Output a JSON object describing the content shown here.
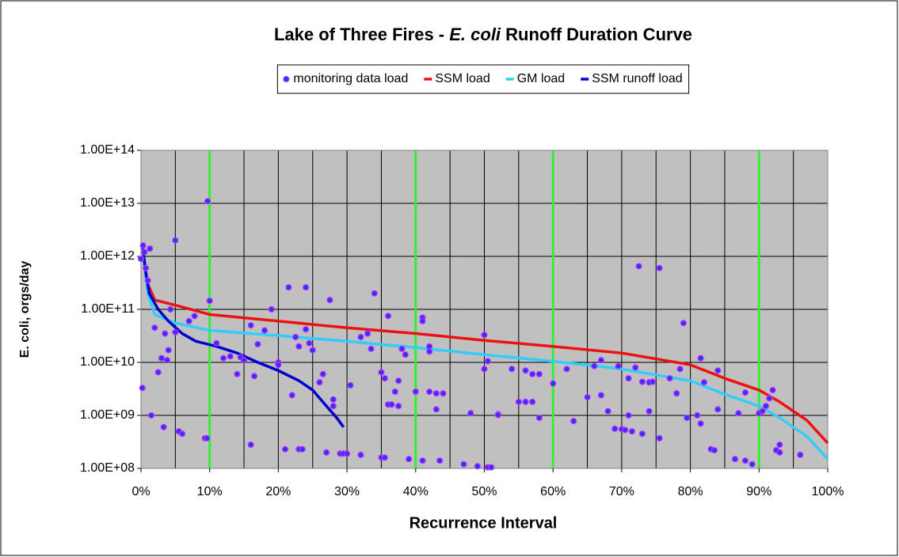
{
  "chart_data": {
    "type": "scatter",
    "title_parts": [
      "Lake of Three Fires - ",
      "E. coli",
      " Runoff Duration Curve"
    ],
    "xlabel": "Recurrence Interval",
    "ylabel": "E. coli, orgs/day",
    "log_y": true,
    "xlim": [
      0,
      100
    ],
    "ylim": [
      100000000.0,
      100000000000000.0
    ],
    "xticks": [
      {
        "value": 0,
        "label": "0%"
      },
      {
        "value": 10,
        "label": "10%"
      },
      {
        "value": 20,
        "label": "20%"
      },
      {
        "value": 30,
        "label": "30%"
      },
      {
        "value": 40,
        "label": "40%"
      },
      {
        "value": 50,
        "label": "50%"
      },
      {
        "value": 60,
        "label": "60%"
      },
      {
        "value": 70,
        "label": "70%"
      },
      {
        "value": 80,
        "label": "80%"
      },
      {
        "value": 90,
        "label": "90%"
      },
      {
        "value": 100,
        "label": "100%"
      }
    ],
    "yticks": [
      {
        "value": 100000000.0,
        "label": "1.00E+08"
      },
      {
        "value": 1000000000.0,
        "label": "1.00E+09"
      },
      {
        "value": 10000000000.0,
        "label": "1.00E+10"
      },
      {
        "value": 100000000000.0,
        "label": "1.00E+11"
      },
      {
        "value": 1000000000000.0,
        "label": "1.00E+12"
      },
      {
        "value": 10000000000000.0,
        "label": "1.00E+13"
      },
      {
        "value": 100000000000000.0,
        "label": "1.00E+14"
      }
    ],
    "x_gridlines": [
      0,
      5,
      10,
      15,
      20,
      25,
      30,
      35,
      40,
      45,
      50,
      55,
      60,
      65,
      70,
      75,
      80,
      85,
      90,
      95,
      100
    ],
    "zone_lines": [
      10,
      40,
      60,
      90
    ],
    "zone_color": "#33ee33",
    "grid": true,
    "legend": "top",
    "series": [
      {
        "name": "monitoring data load",
        "style": "markers",
        "color": "#3333ff",
        "edge_color": "#cc33ff",
        "x": [
          0,
          0.2,
          0.3,
          0.5,
          0.7,
          1,
          1.3,
          1.5,
          2,
          2.5,
          3,
          3.3,
          3.5,
          3.8,
          4,
          4.3,
          5,
          5,
          5.5,
          6,
          7,
          7.8,
          9.3,
          9.6,
          9.7,
          10,
          11,
          12,
          13,
          14,
          14.5,
          15,
          16,
          16,
          16.5,
          17,
          18,
          19,
          20,
          20,
          21,
          21.5,
          22,
          22.5,
          23,
          23,
          23.5,
          24,
          24,
          24.5,
          25,
          26,
          26.5,
          27,
          27.5,
          28,
          28,
          29,
          29.5,
          30,
          30.5,
          32,
          32,
          33,
          33.5,
          34,
          35,
          35,
          35.5,
          35.5,
          36,
          36,
          36.5,
          37,
          37.5,
          37.5,
          38,
          38.5,
          39,
          40,
          41,
          41,
          41,
          42,
          42,
          42,
          43,
          43,
          43.5,
          44,
          47,
          48,
          49,
          50,
          50,
          50.5,
          50.5,
          51,
          52,
          52,
          54,
          55,
          56,
          56,
          57,
          57,
          58,
          58,
          60,
          62,
          63,
          65,
          66,
          67,
          67,
          68,
          69,
          69.5,
          70,
          70.5,
          71,
          71,
          71.5,
          72,
          72.5,
          73,
          73,
          74,
          74,
          74.5,
          75.5,
          75.5,
          77,
          78,
          78.5,
          79,
          79.5,
          81,
          81.5,
          81.5,
          82,
          83,
          83.5,
          84,
          84,
          86.5,
          87,
          88,
          88,
          89,
          90,
          90.5,
          91,
          91.5,
          92,
          92.5,
          93,
          93,
          96
        ],
        "values": [
          900000000000.0,
          3300000000.0,
          1600000000000.0,
          1200000000000.0,
          600000000000.0,
          350000000000.0,
          1400000000000.0,
          1000000000.0,
          45000000000.0,
          6500000000.0,
          12000000000.0,
          600000000.0,
          35000000000.0,
          11000000000.0,
          17000000000.0,
          100000000000.0,
          2000000000000.0,
          37000000000.0,
          500000000.0,
          450000000.0,
          60000000000.0,
          75000000000.0,
          370000000.0,
          370000000.0,
          11000000000000.0,
          145000000000.0,
          23000000000.0,
          12000000000.0,
          13000000000.0,
          6000000000.0,
          12500000000.0,
          11000000000.0,
          50000000000.0,
          280000000.0,
          5500000000.0,
          22000000000.0,
          40000000000.0,
          100000000000.0,
          10000000000.0,
          9000000000.0,
          230000000.0,
          260000000000.0,
          2400000000.0,
          30000000000.0,
          20000000000.0,
          230000000.0,
          230000000.0,
          42000000000.0,
          260000000000.0,
          23000000000.0,
          17000000000.0,
          4200000000.0,
          6000000000.0,
          200000000.0,
          150000000000.0,
          1500000000.0,
          2000000000.0,
          190000000.0,
          190000000.0,
          190000000.0,
          3700000000.0,
          30000000000.0,
          180000000.0,
          35000000000.0,
          18000000000.0,
          200000000000.0,
          6500000000.0,
          160000000.0,
          160000000.0,
          5000000000.0,
          1600000000.0,
          75000000000.0,
          1600000000.0,
          2800000000.0,
          4500000000.0,
          1500000000.0,
          18000000000.0,
          14000000000.0,
          150000000.0,
          2800000000.0,
          70000000000.0,
          60000000000.0,
          140000000.0,
          16000000000.0,
          20000000000.0,
          2800000000.0,
          2600000000.0,
          1300000000.0,
          140000000.0,
          2600000000.0,
          120000000.0,
          1100000000.0,
          110000000.0,
          33000000000.0,
          7500000000.0,
          10500000000.0,
          105000000.0,
          105000000.0,
          1050000000.0,
          1020000000.0,
          7500000000.0,
          1800000000.0,
          1800000000.0,
          7000000000.0,
          6000000000.0,
          1800000000.0,
          6000000000.0,
          900000000.0,
          4000000000.0,
          7500000000.0,
          780000000.0,
          2200000000.0,
          8500000000.0,
          11000000000.0,
          2400000000.0,
          1200000000.0,
          560000000.0,
          8500000000.0,
          550000000.0,
          530000000.0,
          5000000000.0,
          1000000000.0,
          500000000.0,
          8000000000.0,
          650000000000.0,
          4300000000.0,
          450000000.0,
          4200000000.0,
          1200000000.0,
          4300000000.0,
          600000000000.0,
          370000000.0,
          5000000000.0,
          2600000000.0,
          7500000000.0,
          55000000000.0,
          900000000.0,
          1000000000.0,
          12000000000.0,
          700000000.0,
          4200000000.0,
          230000000.0,
          220000000.0,
          7000000000.0,
          1300000000.0,
          150000000.0,
          1100000000.0,
          140000000.0,
          2700000000.0,
          120000000.0,
          1100000000.0,
          1200000000.0,
          1500000000.0,
          2100000000.0,
          3000000000.0,
          220000000.0,
          280000000.0,
          200000000.0,
          180000000.0
        ]
      },
      {
        "name": "SSM load",
        "style": "line",
        "color": "#ee1111",
        "x": [
          0.3,
          1,
          2,
          5,
          10,
          20,
          30,
          40,
          50,
          60,
          70,
          80,
          85,
          90,
          93,
          97,
          100
        ],
        "values": [
          1000000000000.0,
          300000000000.0,
          150000000000.0,
          120000000000.0,
          80000000000.0,
          60000000000.0,
          45000000000.0,
          35000000000.0,
          26000000000.0,
          20000000000.0,
          15000000000.0,
          9000000000.0,
          5000000000.0,
          3000000000.0,
          1800000000.0,
          800000000.0,
          300000000.0
        ]
      },
      {
        "name": "GM load",
        "style": "line",
        "color": "#33ccff",
        "x": [
          0.3,
          1,
          2,
          5,
          10,
          20,
          30,
          40,
          50,
          60,
          70,
          80,
          85,
          90,
          93,
          97,
          100
        ],
        "values": [
          1000000000000.0,
          200000000000.0,
          80000000000.0,
          55000000000.0,
          40000000000.0,
          32000000000.0,
          25000000000.0,
          19000000000.0,
          14000000000.0,
          10500000000.0,
          7500000000.0,
          4500000000.0,
          2500000000.0,
          1500000000.0,
          900000000.0,
          400000000.0,
          150000000.0
        ]
      },
      {
        "name": "SSM runoff load",
        "style": "line",
        "color": "#0000cc",
        "x": [
          0.2,
          0.7,
          1.2,
          2.5,
          4,
          6,
          8,
          11,
          14,
          17,
          20,
          23,
          25,
          27,
          28.5,
          29.5
        ],
        "values": [
          1700000000000.0,
          500000000000.0,
          200000000000.0,
          100000000000.0,
          60000000000.0,
          35000000000.0,
          25000000000.0,
          20000000000.0,
          15000000000.0,
          10000000000.0,
          7000000000.0,
          4500000000.0,
          3000000000.0,
          1500000000.0,
          900000000.0,
          600000000.0
        ]
      }
    ]
  }
}
